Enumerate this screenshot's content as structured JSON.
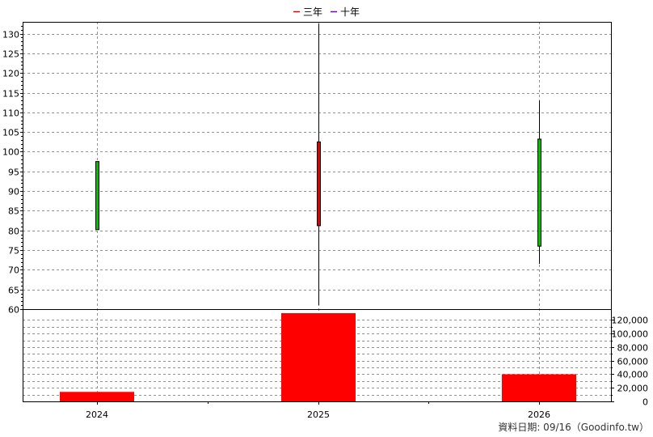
{
  "chart_data": {
    "type": "candlestick+bar",
    "legend": {
      "items": [
        {
          "name": "三年",
          "color": "#e00000"
        },
        {
          "name": "十年",
          "color": "#7a00c0"
        }
      ],
      "placement": "top-center"
    },
    "categories": [
      "2024",
      "2025",
      "2026"
    ],
    "price_axis": {
      "ylim": [
        60,
        133
      ],
      "ticks": [
        130,
        125,
        120,
        115,
        110,
        105,
        100,
        95,
        90,
        85,
        80,
        75,
        70,
        65,
        60
      ],
      "tick_labels": [
        "130",
        "125",
        "120",
        "115",
        "110",
        "105",
        "100",
        "95",
        "90",
        "85",
        "80",
        "75",
        "70",
        "65",
        "60"
      ],
      "grid": true
    },
    "candles": [
      {
        "x": "2024",
        "open": 80.2,
        "close": 97.5,
        "high": 97.5,
        "low": 80.2,
        "color": "#00c000"
      },
      {
        "x": "2025",
        "open": 102.5,
        "close": 81.2,
        "high": 132.5,
        "low": 61.0,
        "color": "#e00000"
      },
      {
        "x": "2026",
        "open": 76.0,
        "close": 103.2,
        "high": 113.0,
        "low": 71.5,
        "color": "#00c000"
      }
    ],
    "volume_axis": {
      "ylim": [
        0,
        130000
      ],
      "ticks": [
        0,
        20000,
        40000,
        60000,
        80000,
        100000,
        120000
      ],
      "tick_labels": [
        "0",
        "20,000",
        "40,000",
        "60,000",
        "80,000",
        "100,000",
        "120,000"
      ],
      "grid": true
    },
    "volume": [
      {
        "x": "2024",
        "value": 14000,
        "color": "#ff0000"
      },
      {
        "x": "2025",
        "value": 130000,
        "color": "#ff0000"
      },
      {
        "x": "2026",
        "value": 40000,
        "color": "#ff0000"
      }
    ]
  },
  "footer": "資料日期: 09/16（Goodinfo.tw）"
}
